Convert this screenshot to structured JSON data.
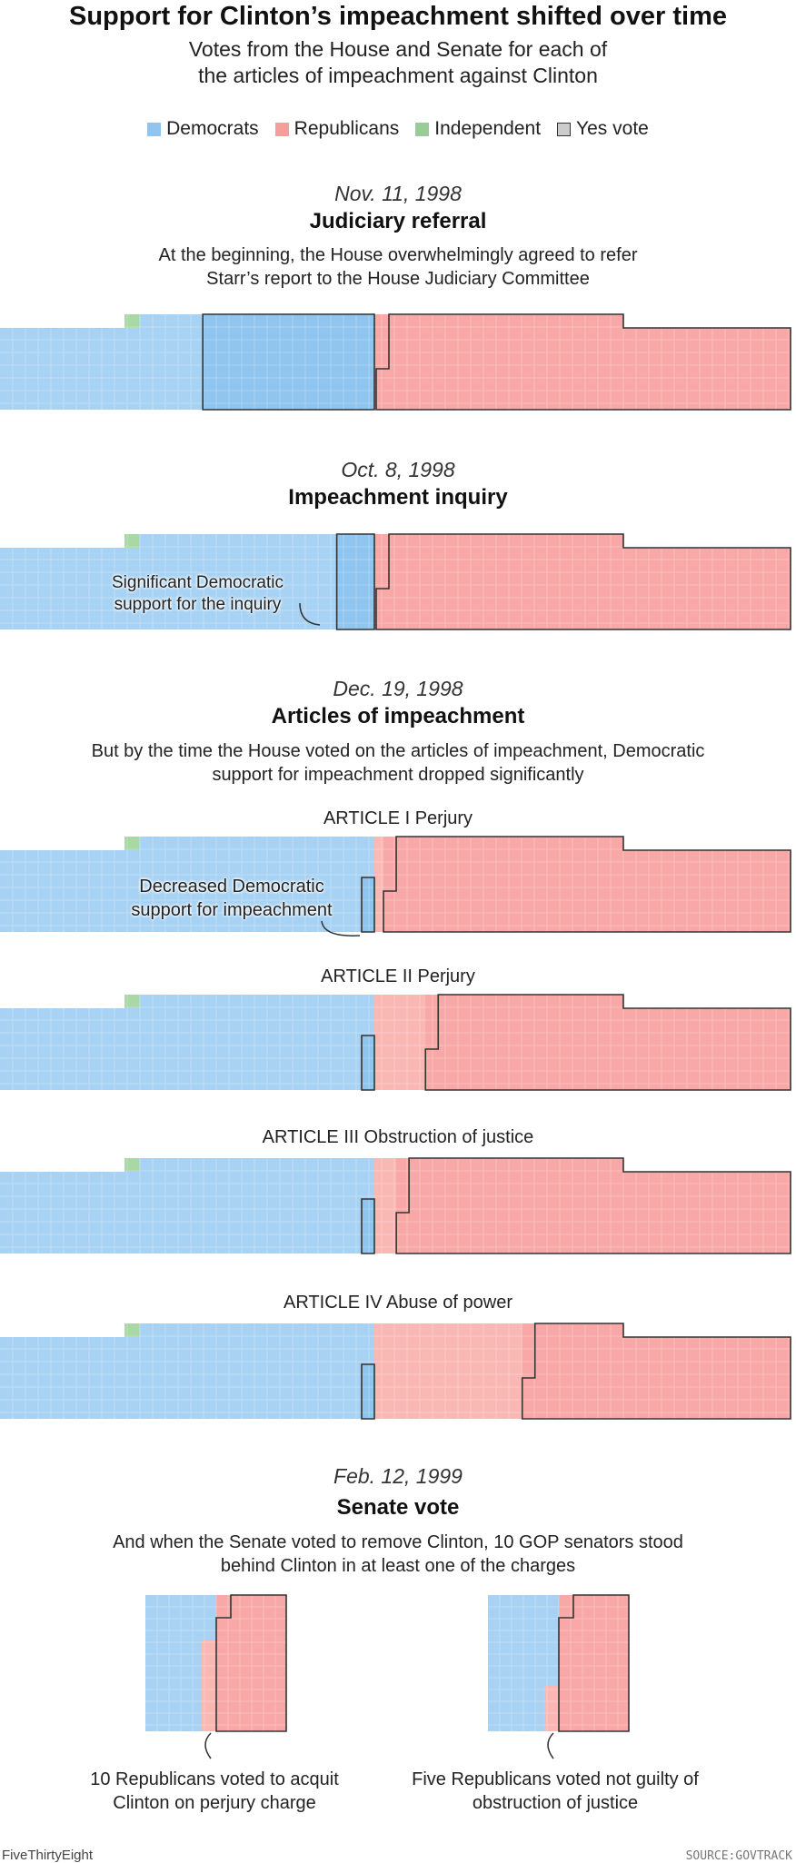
{
  "header": {
    "title": "Support for Clinton’s impeachment shifted over time",
    "subtitle": "Votes from the House and Senate for each of the articles of impeachment against Clinton"
  },
  "legend": [
    {
      "label": "Democrats",
      "color": "#8fc5ee"
    },
    {
      "label": "Republicans",
      "color": "#f69e9c"
    },
    {
      "label": "Independent",
      "color": "#99cc99"
    },
    {
      "label": "Yes vote",
      "color": "#cccccc"
    }
  ],
  "colors": {
    "democrat": "#a7d2f3",
    "democrat_yes": "#8fc5ee",
    "republican": "#f8a8a6",
    "republican_no": "#fab8b4",
    "independent": "#aad7a6",
    "outline": "#333333"
  },
  "sections": [
    {
      "date": "Nov. 11, 1998",
      "title": "Judiciary referral",
      "description": "At the beginning, the House overwhelmingly agreed to refer Starr’s report to the House Judiciary Committee"
    },
    {
      "date": "Oct. 8, 1998",
      "title": "Impeachment inquiry",
      "description": ""
    },
    {
      "date": "Dec. 19, 1998",
      "title": "Articles of impeachment",
      "description": "But by the time the House voted on the articles of impeachment, Democratic support for impeachment dropped significantly"
    },
    {
      "date": "Feb. 12, 1999",
      "title": "Senate vote",
      "description": "And when the Senate voted to remove Clinton, 10 GOP senators stood behind Clinton in at least one of the charges"
    }
  ],
  "articles": [
    "ARTICLE I Perjury",
    "ARTICLE II Perjury",
    "ARTICLE III Obstruction of justice",
    "ARTICLE IV Abuse of power"
  ],
  "annotations": {
    "inquiry": "Significant Democratic support for the inquiry",
    "article1": "Decreased Democratic support for impeachment",
    "senate_perjury": "10 Republicans voted to acquit Clinton on perjury charge",
    "senate_obstruction": "Five Republicans voted not guilty of obstruction of justice"
  },
  "chart_data": [
    {
      "type": "waffle",
      "chamber": "House",
      "vote": "Judiciary referral",
      "date": "Nov. 11, 1998",
      "series": [
        {
          "name": "Democrats",
          "yes": 138,
          "no": 63
        },
        {
          "name": "Republicans",
          "yes": 225,
          "no": 0
        },
        {
          "name": "Independent",
          "yes": 0,
          "no": 1
        }
      ]
    },
    {
      "type": "waffle",
      "chamber": "House",
      "vote": "Impeachment inquiry",
      "date": "Oct. 8, 1998",
      "series": [
        {
          "name": "Democrats",
          "yes": 31,
          "no": 175
        },
        {
          "name": "Republicans",
          "yes": 227,
          "no": 0
        },
        {
          "name": "Independent",
          "yes": 0,
          "no": 1
        }
      ]
    },
    {
      "type": "waffle",
      "chamber": "House",
      "vote": "ARTICLE I Perjury",
      "date": "Dec. 19, 1998",
      "series": [
        {
          "name": "Democrats",
          "yes": 5,
          "no": 200
        },
        {
          "name": "Republicans",
          "yes": 223,
          "no": 5
        },
        {
          "name": "Independent",
          "yes": 0,
          "no": 1
        }
      ]
    },
    {
      "type": "waffle",
      "chamber": "House",
      "vote": "ARTICLE II Perjury",
      "date": "Dec. 19, 1998",
      "series": [
        {
          "name": "Democrats",
          "yes": 5,
          "no": 200
        },
        {
          "name": "Republicans",
          "yes": 200,
          "no": 28
        },
        {
          "name": "Independent",
          "yes": 0,
          "no": 1
        }
      ]
    },
    {
      "type": "waffle",
      "chamber": "House",
      "vote": "ARTICLE III Obstruction of justice",
      "date": "Dec. 19, 1998",
      "series": [
        {
          "name": "Democrats",
          "yes": 5,
          "no": 200
        },
        {
          "name": "Republicans",
          "yes": 216,
          "no": 12
        },
        {
          "name": "Independent",
          "yes": 0,
          "no": 1
        }
      ]
    },
    {
      "type": "waffle",
      "chamber": "House",
      "vote": "ARTICLE IV Abuse of power",
      "date": "Dec. 19, 1998",
      "series": [
        {
          "name": "Democrats",
          "yes": 1,
          "no": 204
        },
        {
          "name": "Republicans",
          "yes": 147,
          "no": 81
        },
        {
          "name": "Independent",
          "yes": 0,
          "no": 1
        }
      ]
    },
    {
      "type": "waffle",
      "chamber": "Senate",
      "vote": "Perjury",
      "date": "Feb. 12, 1999",
      "series": [
        {
          "name": "Democrats",
          "yes": 0,
          "no": 45
        },
        {
          "name": "Republicans",
          "yes": 45,
          "no": 10
        }
      ]
    },
    {
      "type": "waffle",
      "chamber": "Senate",
      "vote": "Obstruction of justice",
      "date": "Feb. 12, 1999",
      "series": [
        {
          "name": "Democrats",
          "yes": 0,
          "no": 45
        },
        {
          "name": "Republicans",
          "yes": 50,
          "no": 5
        }
      ]
    }
  ],
  "footer": {
    "brand": "FiveThirtyEight",
    "source": "SOURCE:GOVTRACK"
  }
}
